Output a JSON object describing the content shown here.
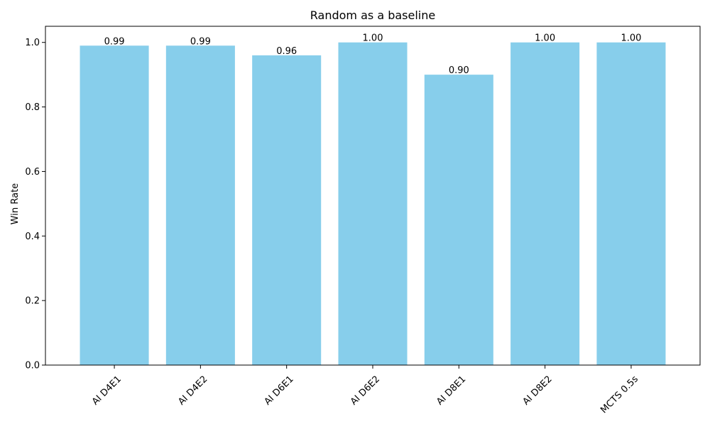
{
  "chart_data": {
    "type": "bar",
    "title": "Random as a baseline",
    "xlabel": "",
    "ylabel": "Win Rate",
    "categories": [
      "AI D4E1",
      "AI D4E2",
      "AI D6E1",
      "AI D6E2",
      "AI D8E1",
      "AI D8E2",
      "MCTS 0.5s"
    ],
    "values": [
      0.99,
      0.99,
      0.96,
      1.0,
      0.9,
      1.0,
      1.0
    ],
    "value_labels": [
      "0.99",
      "0.99",
      "0.96",
      "1.00",
      "0.90",
      "1.00",
      "1.00"
    ],
    "ylim": [
      0,
      1.05
    ],
    "yticks": [
      0.0,
      0.2,
      0.4,
      0.6,
      0.8,
      1.0
    ],
    "ytick_labels": [
      "0.0",
      "0.2",
      "0.4",
      "0.6",
      "0.8",
      "1.0"
    ],
    "grid": false,
    "legend": "none",
    "colors": {
      "bar": "#87ceeb",
      "axis": "#000000",
      "text": "#000000",
      "background": "#ffffff"
    }
  }
}
